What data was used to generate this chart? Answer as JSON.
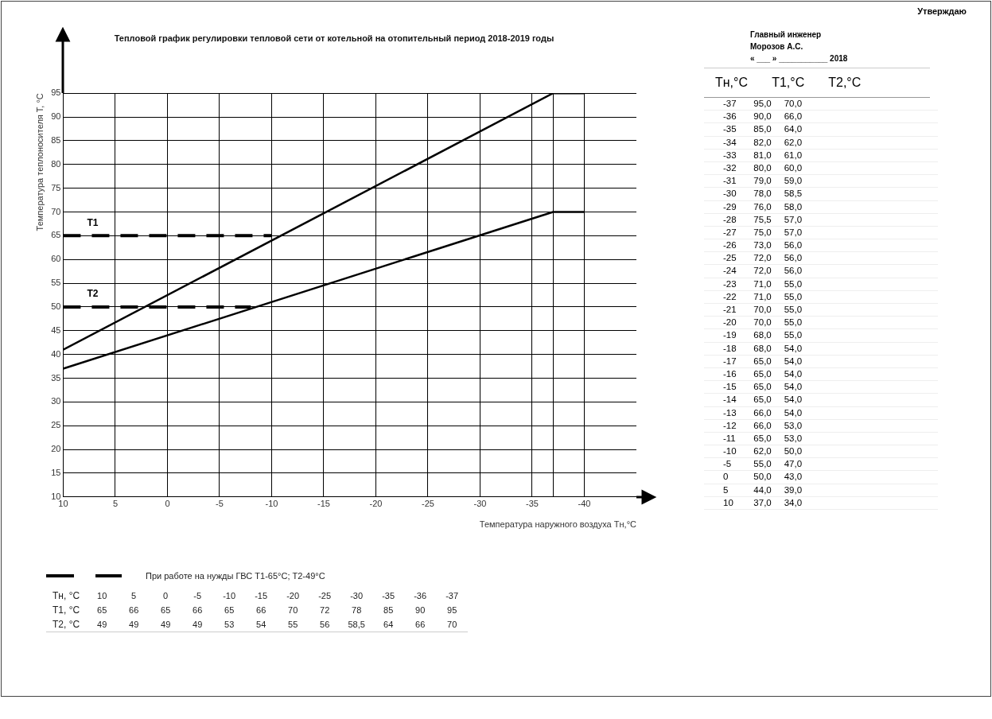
{
  "chart_data": [
    {
      "type": "line",
      "title": "Тепловой график регулировки тепловой сети от котельной на отопительный период 2018-2019 годы",
      "xlabel": "Температура наружного воздуха Тн,°С",
      "ylabel": "Температура теплоносителя T, °С",
      "xlim": [
        10,
        -45
      ],
      "xticks": [
        10,
        5,
        0,
        -5,
        -10,
        -15,
        -20,
        -25,
        -30,
        -35,
        {
          "value": -37,
          "label": null
        },
        -40
      ],
      "ylim": [
        10,
        95
      ],
      "yticks": [
        10,
        15,
        20,
        25,
        30,
        35,
        40,
        45,
        50,
        55,
        60,
        65,
        70,
        75,
        80,
        85,
        90,
        95
      ],
      "grid": true,
      "legend": false,
      "marker": "none",
      "series": [
        {
          "color": "#000000",
          "line_style": "solid",
          "x": [
            10,
            -37,
            -40
          ],
          "values": [
            41,
            95,
            95
          ]
        },
        {
          "color": "#000000",
          "line_style": "solid",
          "x": [
            10,
            -37,
            -40
          ],
          "values": [
            37,
            70,
            70
          ]
        },
        {
          "name": "T1",
          "color": "#000000",
          "line_style": "dashed",
          "x": [
            10,
            -10
          ],
          "values": [
            65,
            65
          ]
        },
        {
          "name": "T2",
          "color": "#000000",
          "line_style": "dashed",
          "x": [
            10,
            -8
          ],
          "values": [
            50,
            50
          ]
        }
      ],
      "annotations": [
        "При работе на нужды ГВС T1-65°С; T2-49°С",
        "Тн, °С\t10\t5\t0\t-5\t-10\t-15\t-20\t-25\t-30\t-35\t-36\t-37",
        "T1, °С\t65\t66\t65\t66\t65\t66\t70\t72\t78\t85\t90\t95",
        "T2, °С\t49\t49\t49\t49\t53\t54\t55\t56\t58,5\t64\t66\t70"
      ]
    },
    {
      "type": "other",
      "title": "Утверждаю",
      "annotations": [
        "Главный инженер",
        "Морозов А.С.",
        "« ___ » ___________ 2018",
        "Тн,°С\tT1,°С\tT2,°С",
        "-37\t95,0\t70,0",
        "-36\t90,0\t66,0",
        "-35\t85,0\t64,0",
        "-34\t82,0\t62,0",
        "-33\t81,0\t61,0",
        "-32\t80,0\t60,0",
        "-31\t79,0\t59,0",
        "-30\t78,0\t58,5",
        "-29\t76,0\t58,0",
        "-28\t75,5\t57,0",
        "-27\t75,0\t57,0",
        "-26\t73,0\t56,0",
        "-25\t72,0\t56,0",
        "-24\t72,0\t56,0",
        "-23\t71,0\t55,0",
        "-22\t71,0\t55,0",
        "-21\t70,0\t55,0",
        "-20\t70,0\t55,0",
        "-19\t68,0\t55,0",
        "-18\t68,0\t54,0",
        "-17\t65,0\t54,0",
        "-16\t65,0\t54,0",
        "-15\t65,0\t54,0",
        "-14\t65,0\t54,0",
        "-13\t66,0\t54,0",
        "-12\t66,0\t53,0",
        "-11\t65,0\t53,0",
        "-10\t62,0\t50,0",
        "-5\t55,0\t47,0",
        "0\t50,0\t43,0",
        "5\t44,0\t39,0",
        "10\t37,0\t34,0"
      ]
    }
  ]
}
